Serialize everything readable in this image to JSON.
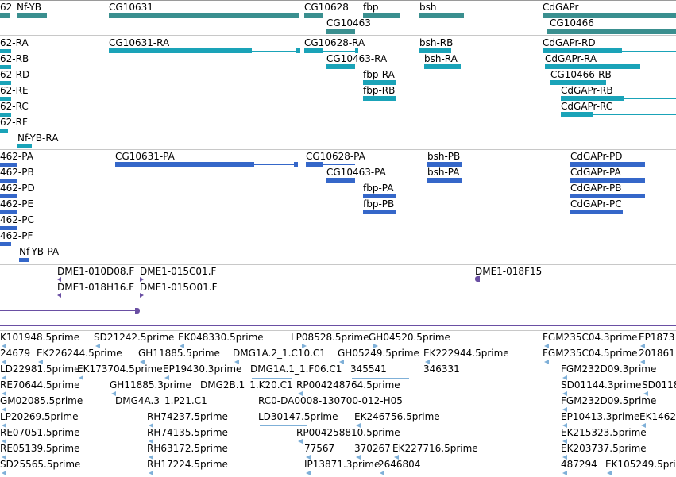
{
  "colors": {
    "gene": "#3a8f8f",
    "transcript": "#1aa3b8",
    "protein": "#3567c9",
    "clone": "#6a4fa3",
    "est": "#7fb0d8"
  },
  "tracks": {
    "genes": [
      "Nf-YB",
      "CG10631",
      "CG10628",
      "fbp",
      "bsh",
      "CdGAPr",
      "CG10463",
      "CG10466"
    ],
    "genes_partial": [
      "62"
    ],
    "transcripts": [
      "CG10631-RA",
      "CG10628-RA",
      "bsh-RB",
      "CdGAPr-RD",
      "CG10463-RA",
      "bsh-RA",
      "CdGAPr-RA",
      "fbp-RA",
      "CG10466-RB",
      "fbp-RB",
      "CdGAPr-RB",
      "CdGAPr-RC",
      "Nf-YB-RA"
    ],
    "transcripts_partial": [
      "62-RA",
      "62-RB",
      "62-RD",
      "62-RE",
      "62-RC",
      "62-RF"
    ],
    "proteins": [
      "CG10631-PA",
      "CG10628-PA",
      "bsh-PB",
      "CdGAPr-PD",
      "CG10463-PA",
      "bsh-PA",
      "CdGAPr-PA",
      "fbp-PA",
      "CdGAPr-PB",
      "fbp-PB",
      "CdGAPr-PC",
      "Nf-YB-PA"
    ],
    "proteins_partial": [
      "462-PA",
      "462-PB",
      "462-PD",
      "462-PE",
      "462-PC",
      "462-PF"
    ],
    "clones": [
      "DME1-010D08.F",
      "DME1-015C01.F",
      "DME1-018H16.F",
      "DME1-015O01.F",
      "DME1-018F15"
    ],
    "ests": [
      "K101948.5prime",
      "SD21242.5prime",
      "EK048330.5prime",
      "LP08528.5prime",
      "GH04520.5prime",
      "FGM235C04.3prime",
      "EP1873",
      "24679",
      "EK226244.5prime",
      "GH11885.5prime",
      "DMG1A.2_1.C10.C1",
      "GH05249.5prime",
      "EK222944.5prime",
      "FGM235C04.5prime",
      "201861",
      "LD22981.5prime",
      "EK173704.5prime",
      "EP19430.3prime",
      "DMG1A.1_1.F06.C1",
      "345541",
      "346331",
      "FGM232D09.3prime",
      "RE70644.5prime",
      "GH11885.3prime",
      "DMG2B.1_1.K20.C1",
      "RP004248764.5prime",
      "SD01144.3prime",
      "SD0118",
      "GM02085.5prime",
      "DMG4A.3_1.P21.C1",
      "RC0-DA0008-130700-012-H05",
      "FGM232D09.5prime",
      "LP20269.5prime",
      "RH74237.5prime",
      "LD30147.5prime",
      "EK246756.5prime",
      "EP10413.3prime",
      "EK1462",
      "RE07051.5prime",
      "RH74135.5prime",
      "RP004258810.5prime",
      "EK215323.5prime",
      "RE05139.5prime",
      "RH63172.5prime",
      "77567",
      "370267",
      "EK227716.5prime",
      "EK203737.5prime",
      "SD25565.5prime",
      "RH17224.5prime",
      "IP13871.3prime",
      "2646804",
      "487294",
      "EK105249.5prime"
    ]
  }
}
